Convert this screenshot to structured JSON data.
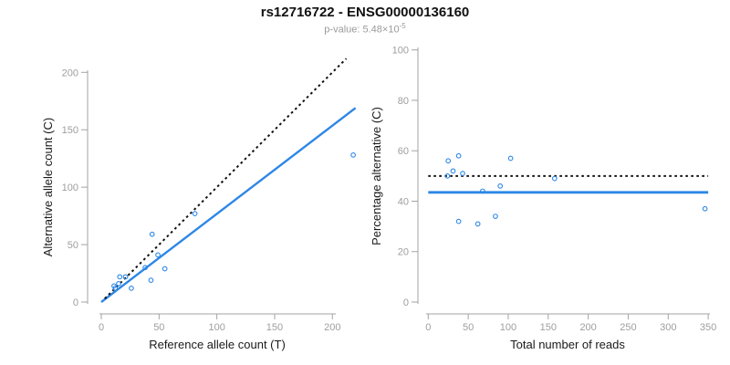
{
  "header": {
    "title": "rs12716722 - ENSG00000136160",
    "subtitle_prefix": "p-value: 5.48×10",
    "subtitle_exponent": "-5"
  },
  "colors": {
    "accent_blue": "#2d87e6",
    "dotted_black": "#111111",
    "axis_gray": "#a3a3a3",
    "tick_label_gray": "#9e9e9e",
    "text_black": "#1a1a1a",
    "subtitle_gray": "#9a9a9a"
  },
  "chart_data": [
    {
      "type": "scatter",
      "panel": "allele-counts",
      "xlabel": "Reference allele count (T)",
      "ylabel": "Alternative allele count (C)",
      "xticks": [
        0,
        50,
        100,
        150,
        200
      ],
      "yticks": [
        0,
        50,
        100,
        150,
        200
      ],
      "xlim": [
        0,
        222
      ],
      "ylim": [
        0,
        217
      ],
      "grid": false,
      "legend": "none",
      "marker": "open-circle",
      "points": [
        [
          11,
          14
        ],
        [
          12,
          12
        ],
        [
          15,
          16
        ],
        [
          16,
          22
        ],
        [
          21,
          22
        ],
        [
          26,
          12
        ],
        [
          38,
          30
        ],
        [
          43,
          19
        ],
        [
          44,
          59
        ],
        [
          49,
          41
        ],
        [
          55,
          29
        ],
        [
          81,
          77
        ],
        [
          218,
          128
        ]
      ],
      "lines": [
        {
          "name": "regression-line",
          "style": "solid",
          "color": "#2d87e6",
          "width": 2.4,
          "from": [
            0,
            0
          ],
          "to": [
            220,
            169
          ]
        },
        {
          "name": "identity-line",
          "style": "dotted",
          "color": "#111111",
          "width": 2,
          "from": [
            3,
            3
          ],
          "to": [
            212,
            212
          ]
        }
      ]
    },
    {
      "type": "scatter",
      "panel": "percentage-alternative",
      "xlabel": "Total number of reads",
      "ylabel": "Percentage alternative (C)",
      "xticks": [
        0,
        50,
        100,
        150,
        200,
        250,
        300,
        350
      ],
      "yticks": [
        0,
        20,
        40,
        60,
        80,
        100
      ],
      "xlim": [
        0,
        355
      ],
      "ylim": [
        0,
        100
      ],
      "grid": false,
      "legend": "none",
      "marker": "open-circle",
      "points": [
        [
          24,
          50
        ],
        [
          25,
          56
        ],
        [
          31,
          52
        ],
        [
          38,
          58
        ],
        [
          38,
          32
        ],
        [
          43,
          51
        ],
        [
          62,
          31
        ],
        [
          68,
          44
        ],
        [
          84,
          34
        ],
        [
          90,
          46
        ],
        [
          103,
          57
        ],
        [
          158,
          49
        ],
        [
          346,
          37
        ]
      ],
      "lines": [
        {
          "name": "mean-percentage-line",
          "style": "solid",
          "color": "#2d87e6",
          "width": 2.8,
          "from": [
            0,
            43.5
          ],
          "to": [
            350,
            43.5
          ]
        },
        {
          "name": "fifty-percent-line",
          "style": "dotted",
          "color": "#111111",
          "width": 2,
          "from": [
            0,
            50
          ],
          "to": [
            350,
            50
          ]
        }
      ]
    }
  ]
}
